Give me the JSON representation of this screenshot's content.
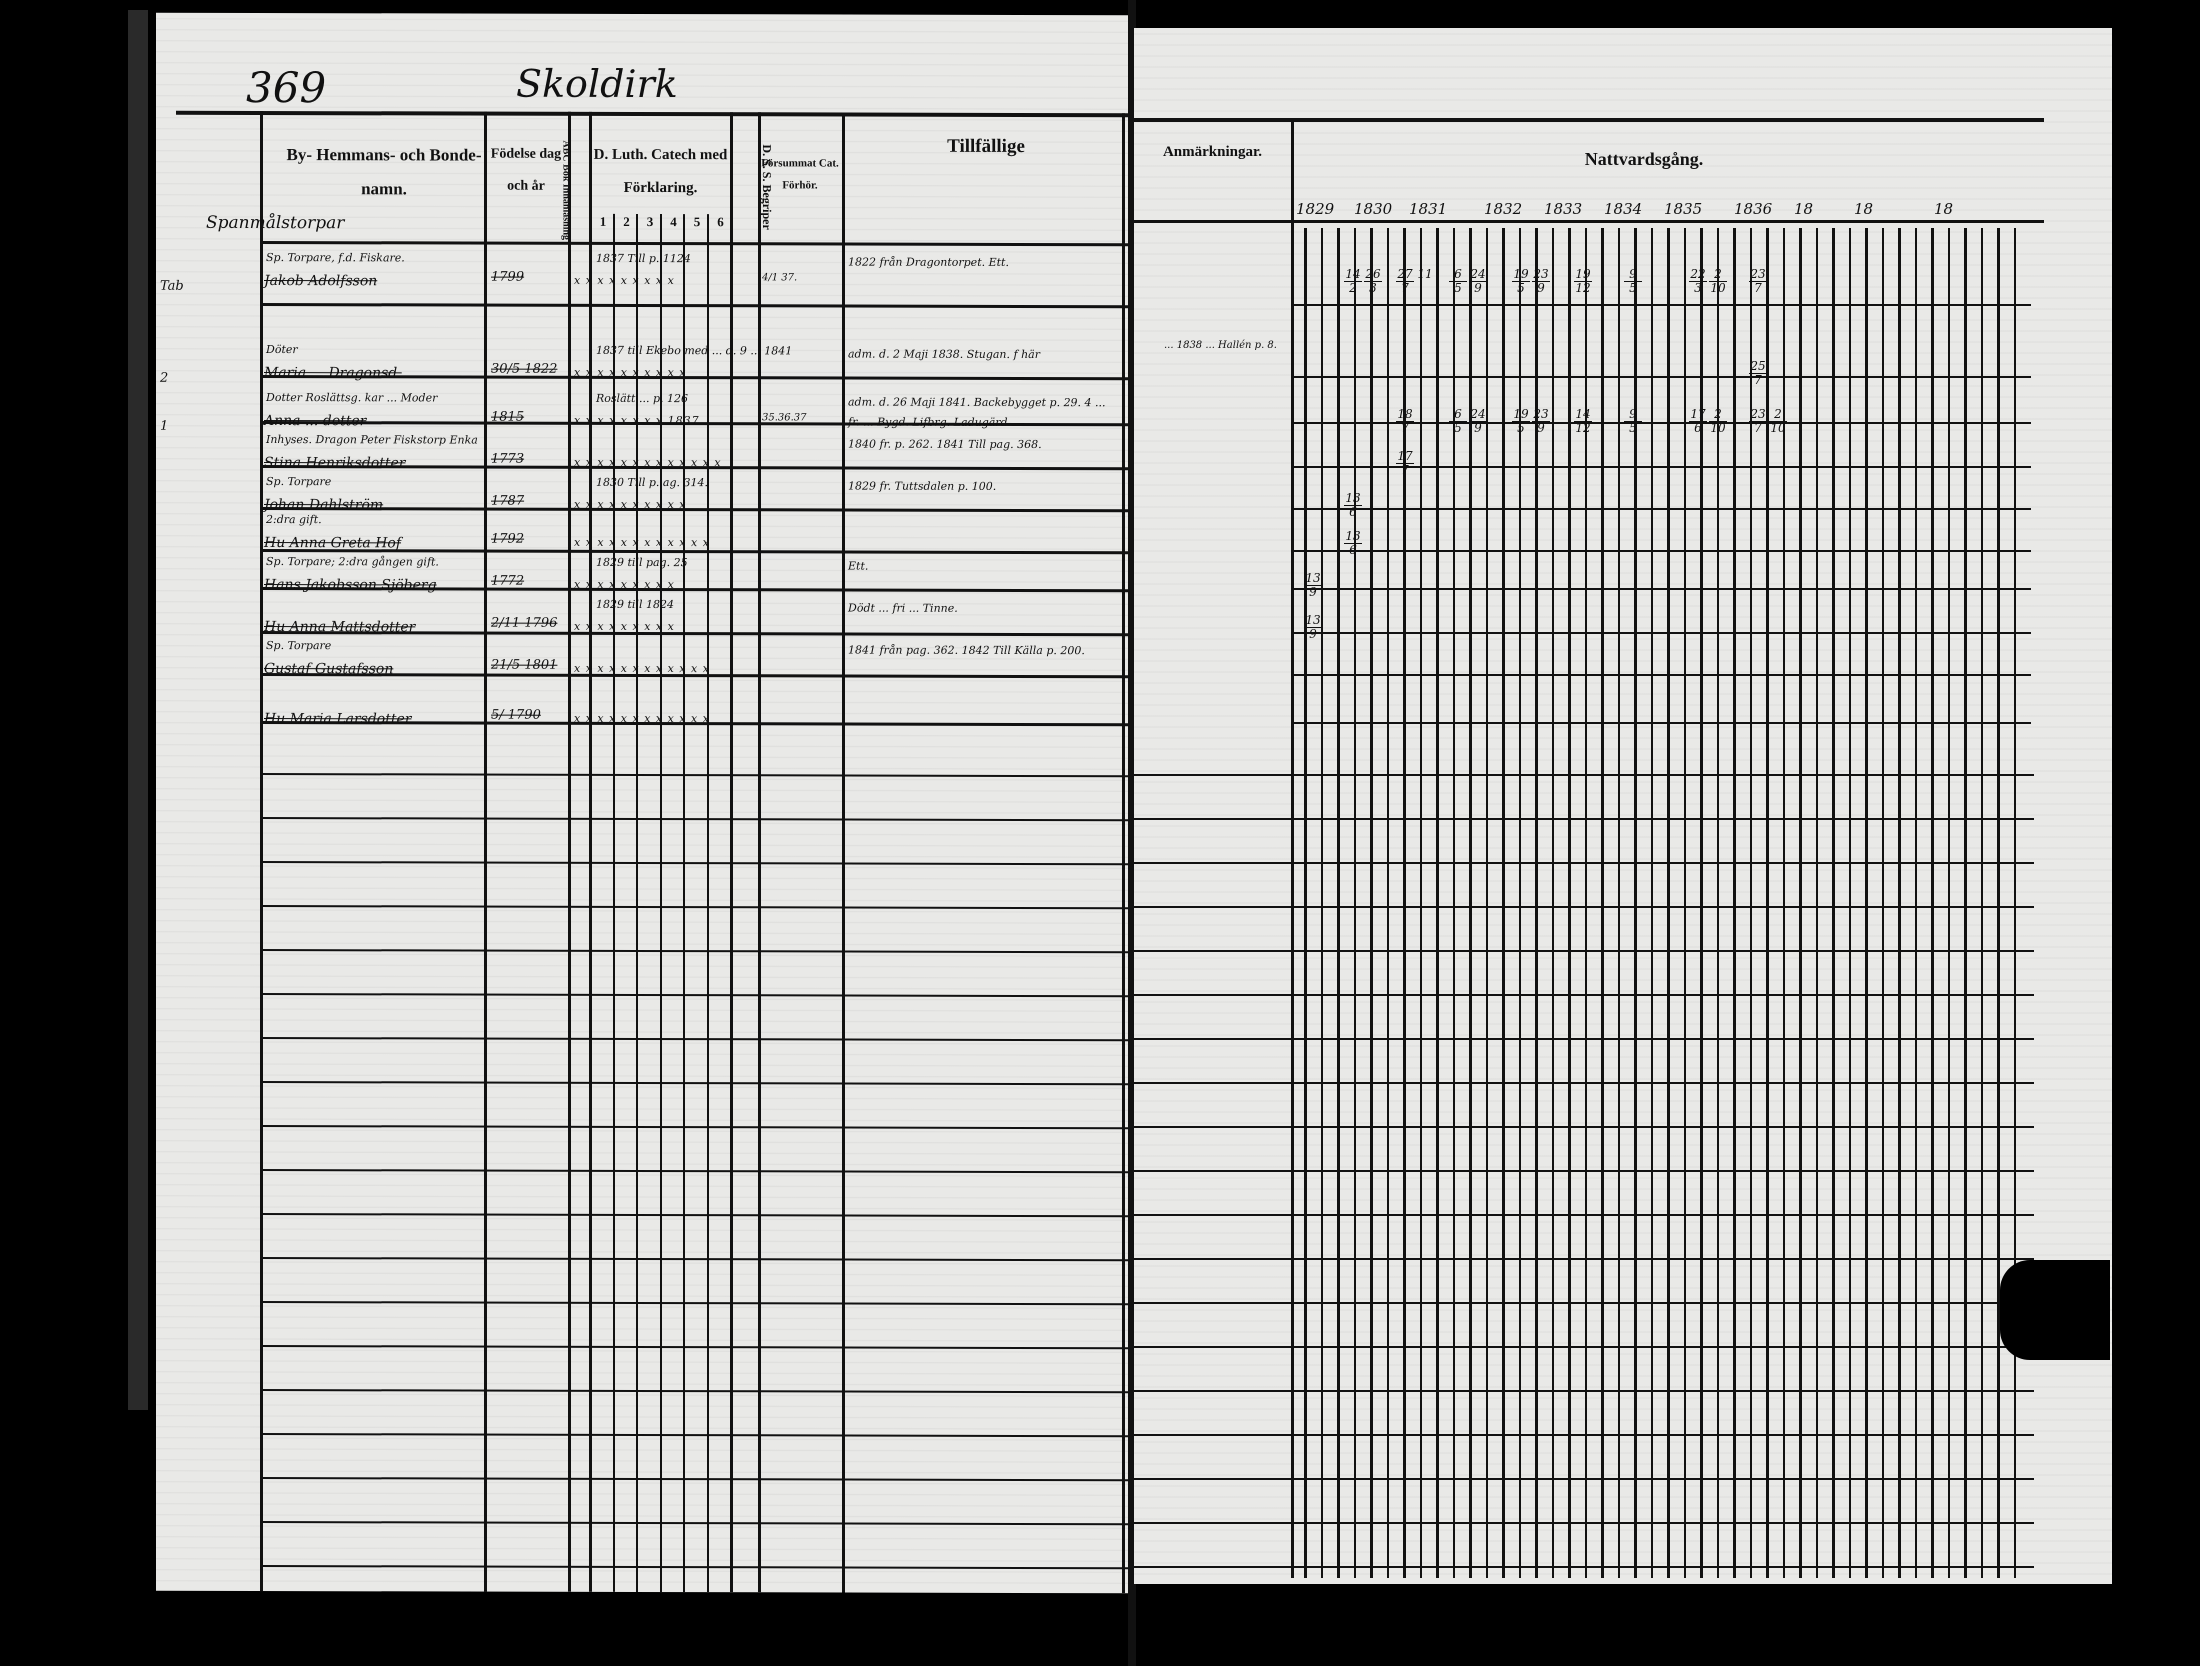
{
  "left_page": {
    "page_number": "369",
    "place_heading": "Skoldirk",
    "headers": {
      "name": "By- Hemmans- och Bonde-namn.",
      "birth": "Födelse dag och år",
      "abc": "ABC Bok Innanläsning",
      "catech": "D. Luth. Catech med Förklaring.",
      "catech_numbers": [
        "1",
        "2",
        "3",
        "4",
        "5",
        "6"
      ],
      "ds": "D. S. S. Begriper",
      "forsummat": "Försummat Cat. Förhör.",
      "tillfallige": "Tillfällige"
    },
    "section_label": "Spanmålstorpar",
    "entries": [
      {
        "margin": "Tab",
        "line1": "Sp. Torpare, f.d. Fiskare.",
        "line2": "Jakob Adolfsson",
        "birth": "1799",
        "catech": "1837 Till p. 1124",
        "marks": "x x x  x x x x x x",
        "forsummat": "4/1 37.",
        "tillfallige": "1822 från Dragontorpet. Ett."
      },
      {
        "margin": "2",
        "line1": "Döter",
        "line2": "Maria ... Dragonsd.",
        "birth": "30/5 1822",
        "catech": "1837 till Ekebo med ...  d. 9 ... 1841",
        "marks": "x x x x x x x x x x",
        "forsummat": "",
        "tillfallige": "adm. d. 2 Maji 1838. Stugan. f här"
      },
      {
        "margin": "1",
        "line1": "Dotter  Roslättsg. kar ... Moder",
        "line2": "Anna ... dotter",
        "birth": "1815",
        "catech": "Roslätt ... p. 126",
        "marks": "x x x x x x x x 1837",
        "forsummat": "35.36.37",
        "tillfallige": "adm. d. 26 Maji 1841. Backebygget p. 29. 4 ... fr. ... Bygd. Lifbrg. Ladugärd"
      },
      {
        "margin": "",
        "line1": "Inhyses. Dragon Peter Fiskstorp Enka",
        "line2": "Stina Henriksdotter",
        "birth": "1773",
        "catech": "",
        "marks": "x x x x x x x x x x x x x",
        "forsummat": "",
        "tillfallige": "1840 fr. p. 262. 1841 Till pag. 368."
      },
      {
        "margin": "",
        "line1": "Sp. Torpare",
        "line2": "Johan Dahlström",
        "birth": "1787",
        "catech": "1830 Till p. ag. 314.",
        "marks": "x x x x x x x x x x",
        "forsummat": "",
        "tillfallige": "1829 fr. Tuttsdalen p. 100."
      },
      {
        "margin": "",
        "line1": "2:dra gift.",
        "line2": "Hu Anna Greta Hof",
        "birth": "1792",
        "catech": "",
        "marks": "x x x x x x x x x x x x",
        "forsummat": "",
        "tillfallige": ""
      },
      {
        "margin": "",
        "line1": "Sp. Torpare; 2:dra gången gift.",
        "line2": "Hans Jakobsson Sjöberg",
        "birth": "1772",
        "catech": "1829 till pag. 25",
        "marks": "x x x x x x x x x",
        "forsummat": "",
        "tillfallige": "Ett."
      },
      {
        "margin": "",
        "line1": "",
        "line2": "Hu Anna Mattsdotter",
        "birth": "2/11 1796",
        "catech": "1829 till 1824",
        "marks": "x x x x x x x x x",
        "forsummat": "",
        "tillfallige": "Dödt ... fri ... Tinne."
      },
      {
        "margin": "",
        "line1": "Sp. Torpare",
        "line2": "Gustaf Gustafsson",
        "birth": "21/5 1801",
        "catech": "",
        "marks": "x x x x x x x x x x x x",
        "forsummat": "",
        "tillfallige": "1841 från pag. 362. 1842 Till Källa p. 200."
      },
      {
        "margin": "",
        "line1": "",
        "line2": "Hu Maria Larsdotter",
        "birth": "5/ 1790",
        "catech": "",
        "marks": "x x x x x x x x x x x x",
        "forsummat": "",
        "tillfallige": ""
      }
    ]
  },
  "right_page": {
    "headers": {
      "anmarkningar": "Anmärkningar.",
      "nattvardsgang": "Nattvardsgång."
    },
    "years": [
      "1829",
      "1830",
      "1831",
      "1832",
      "1833",
      "1834",
      "1835",
      "1836",
      "18",
      "18",
      "18"
    ],
    "remark_row2": "... 1838 ... Hallén p. 8.",
    "communion": [
      [
        {
          "year": "1830",
          "text": [
            "14",
            "2"
          ]
        },
        {
          "year": "1830",
          "text": [
            "26",
            "3"
          ]
        },
        {
          "year": "1831",
          "text": [
            "27",
            "7"
          ]
        },
        {
          "year": "1831",
          "text": [
            "11"
          ]
        },
        {
          "year": "1832",
          "text": [
            "6",
            "5"
          ]
        },
        {
          "year": "1832",
          "text": [
            "24",
            "9"
          ]
        },
        {
          "year": "1833",
          "text": [
            "19",
            "5"
          ]
        },
        {
          "year": "1833",
          "text": [
            "23",
            "9"
          ]
        },
        {
          "year": "1834",
          "text": [
            "19",
            "12"
          ]
        },
        {
          "year": "1835",
          "text": [
            "9",
            "5"
          ]
        },
        {
          "year": "1836",
          "text": [
            "22",
            "3"
          ]
        },
        {
          "year": "1836",
          "text": [
            "2",
            "10"
          ]
        },
        {
          "year": "18",
          "text": [
            "23",
            "7"
          ]
        }
      ],
      [
        {
          "year": "18",
          "text": [
            "25",
            "7"
          ]
        }
      ],
      [
        {
          "year": "1831",
          "text": [
            "18",
            "7"
          ]
        },
        {
          "year": "1832",
          "text": [
            "6",
            "5"
          ]
        },
        {
          "year": "1832",
          "text": [
            "24",
            "9"
          ]
        },
        {
          "year": "1833",
          "text": [
            "19",
            "5"
          ]
        },
        {
          "year": "1833",
          "text": [
            "23",
            "9"
          ]
        },
        {
          "year": "1834",
          "text": [
            "14",
            "12"
          ]
        },
        {
          "year": "1835",
          "text": [
            "9",
            "5"
          ]
        },
        {
          "year": "1836",
          "text": [
            "17",
            "6"
          ]
        },
        {
          "year": "1836",
          "text": [
            "2",
            "10"
          ]
        },
        {
          "year": "18",
          "text": [
            "23",
            "7"
          ]
        },
        {
          "year": "18",
          "text": [
            "2",
            "10"
          ]
        }
      ],
      [
        {
          "year": "1831",
          "text": [
            "17",
            "7"
          ]
        }
      ],
      [
        {
          "year": "1830",
          "text": [
            "13",
            "6"
          ]
        }
      ],
      [
        {
          "year": "1830",
          "text": [
            "13",
            "6"
          ]
        }
      ],
      [
        {
          "year": "1829",
          "text": [
            "13",
            "9"
          ]
        }
      ],
      [
        {
          "year": "1829",
          "text": [
            "13",
            "9"
          ]
        }
      ],
      [],
      []
    ]
  }
}
